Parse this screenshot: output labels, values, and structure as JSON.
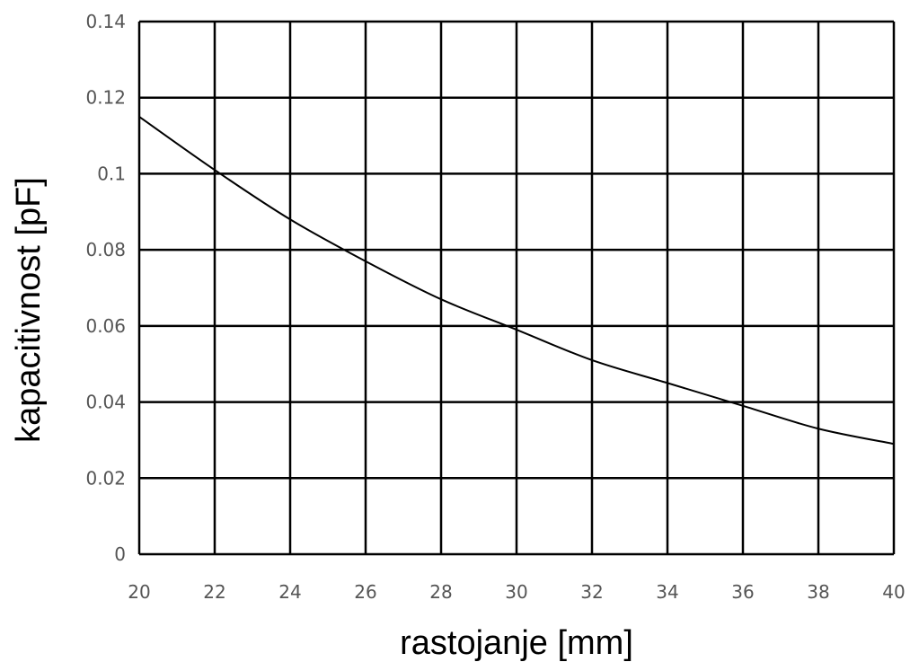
{
  "chart_data": {
    "type": "line",
    "title": "",
    "xlabel": "rastojanje [mm]",
    "ylabel": "kapacitivnost [pF]",
    "xlim": [
      20,
      40
    ],
    "ylim": [
      0,
      0.14
    ],
    "x_ticks": [
      "20",
      "22",
      "24",
      "26",
      "28",
      "30",
      "32",
      "34",
      "36",
      "38",
      "40"
    ],
    "y_ticks": [
      "0",
      "0.02",
      "0.04",
      "0.06",
      "0.08",
      "0.1",
      "0.12",
      "0.14"
    ],
    "grid": true,
    "legend": "none",
    "series": [
      {
        "color": "#000000",
        "x": [
          20,
          22,
          24,
          26,
          28,
          30,
          32,
          34,
          36,
          38,
          40
        ],
        "y": [
          0.115,
          0.101,
          0.088,
          0.077,
          0.067,
          0.059,
          0.051,
          0.045,
          0.039,
          0.033,
          0.029
        ]
      }
    ]
  }
}
